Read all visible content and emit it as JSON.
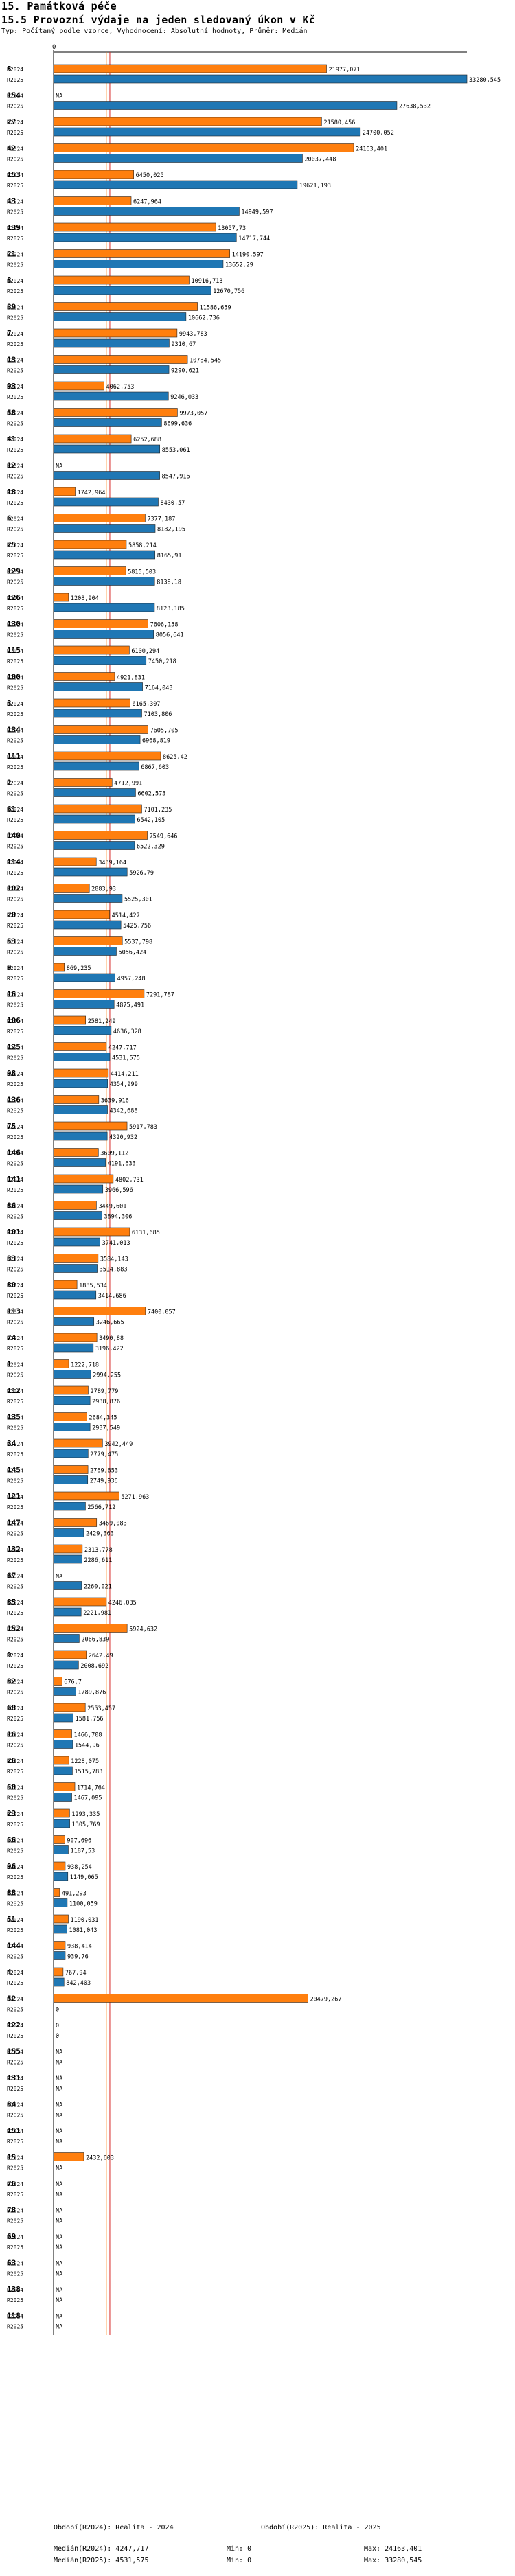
{
  "header": {
    "title1": "15. Památková péče",
    "title2": "15.5 Provozní výdaje na jeden sledovaný úkon v Kč",
    "subtitle": "Typ: Počítaný podle vzorce, Vyhodnocení: Absolutní hodnoty, Průměr: Medián"
  },
  "colors": {
    "r2024": "#FF7F0E",
    "r2025": "#1F77B4",
    "median2024": "#FF7F0E",
    "median2025": "#D62728"
  },
  "legend": {
    "r2024": "Období(R2024): Realita - 2024",
    "r2025": "Období(R2025): Realita - 2025",
    "median2024": "Medián(R2024): 4247,717",
    "median2025": "Medián(R2025): 4531,575",
    "min2024": "Min: 0",
    "min2025": "Min: 0",
    "max2024": "Max: 24163,401",
    "max2025": "Max: 33280,545"
  },
  "chart_data": {
    "type": "bar",
    "orientation": "horizontal",
    "title": "15.5 Provozní výdaje na jeden sledovaný úkon v Kč",
    "xlim": [
      0,
      33280.545
    ],
    "x_tick_label": "0",
    "series_labels": [
      "R2024",
      "R2025"
    ],
    "medians": {
      "R2024": 4247.717,
      "R2025": 4531.575
    },
    "categories": [
      {
        "id": "5",
        "r2024": "21977,071",
        "r2025": "33280,545"
      },
      {
        "id": "154",
        "r2024": "NA",
        "r2025": "27638,532"
      },
      {
        "id": "27",
        "r2024": "21580,456",
        "r2025": "24700,052"
      },
      {
        "id": "42",
        "r2024": "24163,401",
        "r2025": "20037,448"
      },
      {
        "id": "153",
        "r2024": "6450,025",
        "r2025": "19621,193"
      },
      {
        "id": "43",
        "r2024": "6247,964",
        "r2025": "14949,597"
      },
      {
        "id": "139",
        "r2024": "13057,73",
        "r2025": "14717,744"
      },
      {
        "id": "21",
        "r2024": "14190,597",
        "r2025": "13652,29"
      },
      {
        "id": "8",
        "r2024": "10916,713",
        "r2025": "12670,756"
      },
      {
        "id": "39",
        "r2024": "11586,659",
        "r2025": "10662,736"
      },
      {
        "id": "7",
        "r2024": "9943,783",
        "r2025": "9310,67"
      },
      {
        "id": "13",
        "r2024": "10784,545",
        "r2025": "9290,621"
      },
      {
        "id": "93",
        "r2024": "4062,753",
        "r2025": "9246,033"
      },
      {
        "id": "58",
        "r2024": "9973,057",
        "r2025": "8699,636"
      },
      {
        "id": "41",
        "r2024": "6252,688",
        "r2025": "8553,061"
      },
      {
        "id": "12",
        "r2024": "NA",
        "r2025": "8547,916"
      },
      {
        "id": "18",
        "r2024": "1742,964",
        "r2025": "8430,57"
      },
      {
        "id": "6",
        "r2024": "7377,187",
        "r2025": "8182,195"
      },
      {
        "id": "25",
        "r2024": "5858,214",
        "r2025": "8165,91"
      },
      {
        "id": "129",
        "r2024": "5815,503",
        "r2025": "8138,18"
      },
      {
        "id": "126",
        "r2024": "1208,904",
        "r2025": "8123,185"
      },
      {
        "id": "130",
        "r2024": "7606,158",
        "r2025": "8056,641"
      },
      {
        "id": "115",
        "r2024": "6100,294",
        "r2025": "7450,218"
      },
      {
        "id": "100",
        "r2024": "4921,831",
        "r2025": "7164,043"
      },
      {
        "id": "3",
        "r2024": "6165,307",
        "r2025": "7103,806"
      },
      {
        "id": "134",
        "r2024": "7605,705",
        "r2025": "6968,819"
      },
      {
        "id": "111",
        "r2024": "8625,42",
        "r2025": "6867,603"
      },
      {
        "id": "2",
        "r2024": "4712,991",
        "r2025": "6602,573"
      },
      {
        "id": "61",
        "r2024": "7101,235",
        "r2025": "6542,105"
      },
      {
        "id": "140",
        "r2024": "7549,646",
        "r2025": "6522,329"
      },
      {
        "id": "114",
        "r2024": "3439,164",
        "r2025": "5926,79"
      },
      {
        "id": "102",
        "r2024": "2883,93",
        "r2025": "5525,301"
      },
      {
        "id": "20",
        "r2024": "4514,427",
        "r2025": "5425,756"
      },
      {
        "id": "53",
        "r2024": "5537,798",
        "r2025": "5056,424"
      },
      {
        "id": "9",
        "r2024": "869,235",
        "r2025": "4957,248"
      },
      {
        "id": "16",
        "r2024": "7291,787",
        "r2025": "4875,491"
      },
      {
        "id": "106",
        "r2024": "2581,249",
        "r2025": "4636,328"
      },
      {
        "id": "125",
        "r2024": "4247,717",
        "r2025": "4531,575"
      },
      {
        "id": "98",
        "r2024": "4414,211",
        "r2025": "4354,999"
      },
      {
        "id": "136",
        "r2024": "3639,916",
        "r2025": "4342,688"
      },
      {
        "id": "75",
        "r2024": "5917,783",
        "r2025": "4320,932"
      },
      {
        "id": "146",
        "r2024": "3609,112",
        "r2025": "4191,633"
      },
      {
        "id": "141",
        "r2024": "4802,731",
        "r2025": "3966,596"
      },
      {
        "id": "86",
        "r2024": "3449,601",
        "r2025": "3894,306"
      },
      {
        "id": "101",
        "r2024": "6131,685",
        "r2025": "3741,013"
      },
      {
        "id": "33",
        "r2024": "3584,143",
        "r2025": "3514,883"
      },
      {
        "id": "80",
        "r2024": "1885,534",
        "r2025": "3414,686"
      },
      {
        "id": "113",
        "r2024": "7400,057",
        "r2025": "3246,665"
      },
      {
        "id": "74",
        "r2024": "3490,88",
        "r2025": "3196,422"
      },
      {
        "id": "1",
        "r2024": "1222,718",
        "r2025": "2994,255"
      },
      {
        "id": "112",
        "r2024": "2789,779",
        "r2025": "2938,876"
      },
      {
        "id": "135",
        "r2024": "2684,345",
        "r2025": "2937,549"
      },
      {
        "id": "34",
        "r2024": "3942,449",
        "r2025": "2779,475"
      },
      {
        "id": "145",
        "r2024": "2769,653",
        "r2025": "2749,936"
      },
      {
        "id": "121",
        "r2024": "5271,963",
        "r2025": "2566,712"
      },
      {
        "id": "147",
        "r2024": "3469,083",
        "r2025": "2429,363"
      },
      {
        "id": "132",
        "r2024": "2313,778",
        "r2025": "2286,611"
      },
      {
        "id": "67",
        "r2024": "NA",
        "r2025": "2260,021"
      },
      {
        "id": "85",
        "r2024": "4246,035",
        "r2025": "2221,981"
      },
      {
        "id": "152",
        "r2024": "5924,632",
        "r2025": "2066,839"
      },
      {
        "id": "9b",
        "label": "9",
        "r2024": "2642,49",
        "r2025": "2008,692"
      },
      {
        "id": "82",
        "r2024": "676,7",
        "r2025": "1789,876"
      },
      {
        "id": "68",
        "r2024": "2553,457",
        "r2025": "1581,756"
      },
      {
        "id": "16b",
        "label": "16",
        "r2024": "1466,708",
        "r2025": "1544,96"
      },
      {
        "id": "26",
        "r2024": "1228,075",
        "r2025": "1515,783"
      },
      {
        "id": "50",
        "r2024": "1714,764",
        "r2025": "1467,095"
      },
      {
        "id": "23",
        "r2024": "1293,335",
        "r2025": "1305,769"
      },
      {
        "id": "56",
        "r2024": "907,696",
        "r2025": "1187,53"
      },
      {
        "id": "96",
        "r2024": "938,254",
        "r2025": "1149,065"
      },
      {
        "id": "88",
        "r2024": "491,293",
        "r2025": "1100,059"
      },
      {
        "id": "51",
        "r2024": "1190,031",
        "r2025": "1081,043"
      },
      {
        "id": "144",
        "r2024": "938,414",
        "r2025": "939,76"
      },
      {
        "id": "4",
        "r2024": "767,94",
        "r2025": "842,403"
      },
      {
        "id": "52",
        "r2024": "20479,267",
        "r2025": "0"
      },
      {
        "id": "122",
        "r2024": "0",
        "r2025": "0"
      },
      {
        "id": "155",
        "r2024": "NA",
        "r2025": "NA"
      },
      {
        "id": "131",
        "r2024": "NA",
        "r2025": "NA"
      },
      {
        "id": "84",
        "r2024": "NA",
        "r2025": "NA"
      },
      {
        "id": "151",
        "r2024": "NA",
        "r2025": "NA"
      },
      {
        "id": "15",
        "r2024": "2432,603",
        "r2025": "NA"
      },
      {
        "id": "76",
        "r2024": "NA",
        "r2025": "NA"
      },
      {
        "id": "78",
        "r2024": "NA",
        "r2025": "NA"
      },
      {
        "id": "69",
        "r2024": "NA",
        "r2025": "NA"
      },
      {
        "id": "63",
        "r2024": "NA",
        "r2025": "NA"
      },
      {
        "id": "138",
        "r2024": "NA",
        "r2025": "NA"
      },
      {
        "id": "118",
        "r2024": "NA",
        "r2025": "NA"
      }
    ]
  }
}
